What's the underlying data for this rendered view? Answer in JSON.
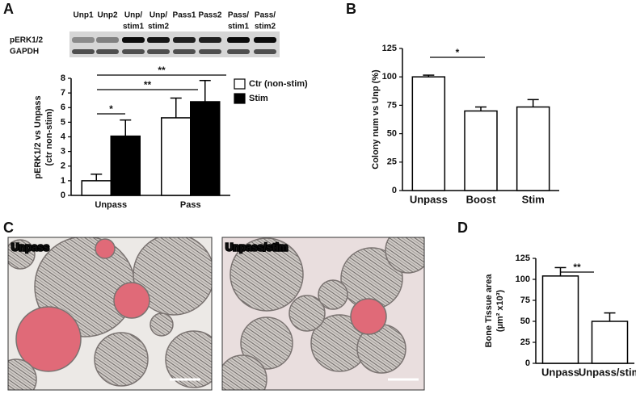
{
  "panel_labels": [
    "A",
    "B",
    "C",
    "D"
  ],
  "blot": {
    "lanes": [
      [
        "Unp1"
      ],
      [
        "Unp2"
      ],
      [
        "Unp/",
        "stim1"
      ],
      [
        "Unp/",
        "stim2"
      ],
      [
        "Pass1"
      ],
      [
        "Pass2"
      ],
      [
        "Pass/",
        "stim1"
      ],
      [
        "Pass/",
        "stim2"
      ]
    ],
    "rows": [
      "pERK1/2",
      "GAPDH"
    ]
  },
  "micrographs": [
    {
      "label": "Unpass"
    },
    {
      "label": "Unpass/stim"
    }
  ],
  "chart_data": [
    {
      "type": "bar",
      "categories": [
        "Unpass",
        "Pass"
      ],
      "series": [
        {
          "name": "Ctr (non-stim)",
          "color": "#ffffff",
          "values": [
            1,
            5.3
          ],
          "errors": [
            0.45,
            1.35
          ]
        },
        {
          "name": "Stim",
          "color": "#000000",
          "values": [
            4.05,
            6.4
          ],
          "errors": [
            1.1,
            1.45
          ]
        }
      ],
      "ylim": [
        0,
        8
      ],
      "yticks": [
        0,
        1,
        2,
        3,
        4,
        5,
        6,
        7,
        8
      ],
      "y_label": [
        "pERK1/2 vs Unpass",
        "(ctr non-stim)"
      ],
      "annotations": [
        "*",
        "**",
        "**"
      ],
      "legend": "upper right"
    },
    {
      "type": "bar",
      "categories": [
        "Unpass",
        "Boost",
        "Stim"
      ],
      "series": [
        {
          "color": "#ffffff",
          "values": [
            100,
            70,
            73.5
          ],
          "errors": [
            1.5,
            3.5,
            6.5
          ]
        }
      ],
      "ylim": [
        0,
        125
      ],
      "yticks": [
        0,
        25,
        50,
        75,
        100,
        125
      ],
      "y_label": [
        "Colony num vs Unp (%)"
      ],
      "annotations": [
        "*"
      ]
    },
    {
      "type": "bar",
      "categories": [
        "Unpass",
        "Unpass/stim"
      ],
      "series": [
        {
          "color": "#ffffff",
          "values": [
            104,
            50
          ],
          "errors": [
            10,
            10
          ]
        }
      ],
      "ylim": [
        0,
        125
      ],
      "yticks": [
        0,
        25,
        50,
        75,
        100,
        125
      ],
      "y_label": [
        "Bone Tissue area",
        "(µm² x10³)"
      ],
      "annotations": [
        "**"
      ]
    }
  ]
}
